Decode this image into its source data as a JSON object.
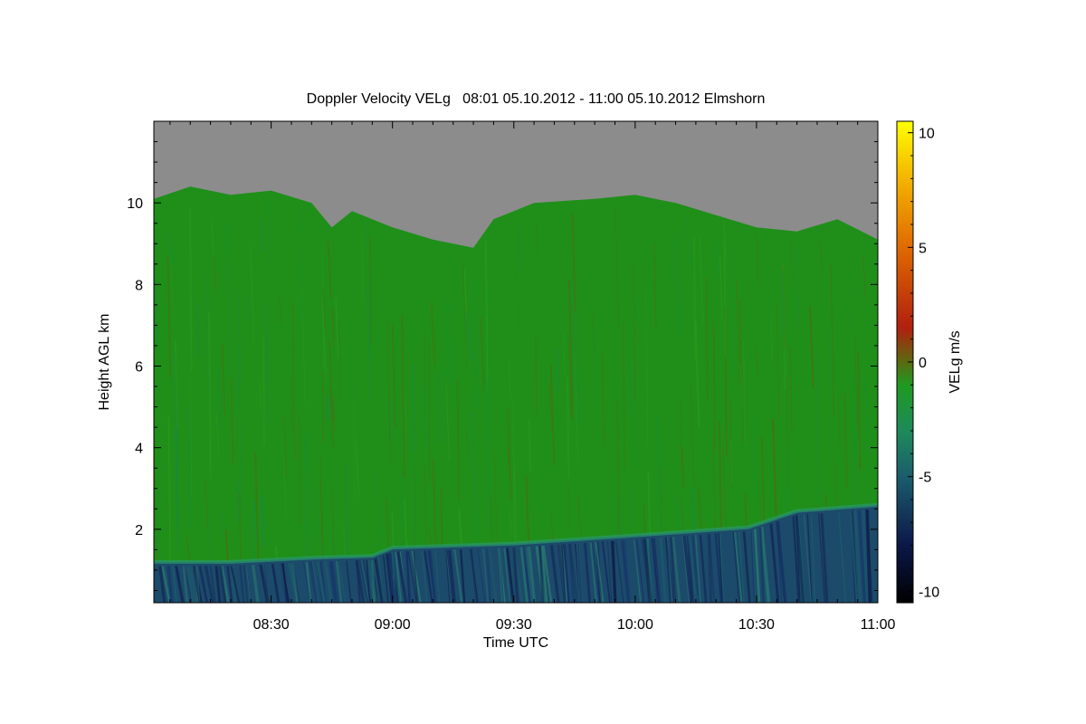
{
  "chart_data": {
    "type": "heatmap",
    "title": "Doppler Velocity VELg   08:01 05.10.2012 - 11:00 05.10.2012 Elmshorn",
    "xlabel": "Time UTC",
    "ylabel": "Height AGL km",
    "colorbar_label": "VELg m/s",
    "x_range_minutes_utc": [
      481,
      660
    ],
    "x_ticks": [
      {
        "minute": 510,
        "label": "08:30"
      },
      {
        "minute": 540,
        "label": "09:00"
      },
      {
        "minute": 570,
        "label": "09:30"
      },
      {
        "minute": 600,
        "label": "10:00"
      },
      {
        "minute": 630,
        "label": "10:30"
      },
      {
        "minute": 660,
        "label": "11:00"
      }
    ],
    "ylim": [
      0.2,
      12.0
    ],
    "y_ticks": [
      2,
      4,
      6,
      8,
      10
    ],
    "colorbar_range": [
      -10.5,
      10.5
    ],
    "colorbar_ticks": [
      10,
      5,
      0,
      -5,
      -10
    ],
    "colors": {
      "no_signal": "#8c8c8c",
      "cloud_green": "#1f8f1a",
      "rain_blue": "#1c4a6a",
      "rain_dark": "#0e1f4a"
    },
    "colormap": [
      {
        "v": -10.5,
        "c": "#000000"
      },
      {
        "v": -8.0,
        "c": "#0c1748"
      },
      {
        "v": -5.0,
        "c": "#1b5d6c"
      },
      {
        "v": -3.0,
        "c": "#1e8a5a"
      },
      {
        "v": -1.0,
        "c": "#1f9a22"
      },
      {
        "v": 0.0,
        "c": "#5a6a10"
      },
      {
        "v": 1.5,
        "c": "#b02010"
      },
      {
        "v": 5.0,
        "c": "#e06a00"
      },
      {
        "v": 8.0,
        "c": "#f4b400"
      },
      {
        "v": 10.5,
        "c": "#ffff00"
      }
    ],
    "echo_top_km": [
      {
        "minute": 481,
        "h": 10.1
      },
      {
        "minute": 490,
        "h": 10.4
      },
      {
        "minute": 500,
        "h": 10.2
      },
      {
        "minute": 510,
        "h": 10.3
      },
      {
        "minute": 520,
        "h": 10.0
      },
      {
        "minute": 525,
        "h": 9.4
      },
      {
        "minute": 530,
        "h": 9.8
      },
      {
        "minute": 540,
        "h": 9.4
      },
      {
        "minute": 550,
        "h": 9.1
      },
      {
        "minute": 560,
        "h": 8.9
      },
      {
        "minute": 565,
        "h": 9.6
      },
      {
        "minute": 575,
        "h": 10.0
      },
      {
        "minute": 590,
        "h": 10.1
      },
      {
        "minute": 600,
        "h": 10.2
      },
      {
        "minute": 610,
        "h": 10.0
      },
      {
        "minute": 620,
        "h": 9.7
      },
      {
        "minute": 630,
        "h": 9.4
      },
      {
        "minute": 640,
        "h": 9.3
      },
      {
        "minute": 650,
        "h": 9.6
      },
      {
        "minute": 660,
        "h": 9.1
      }
    ],
    "melting_layer_km": [
      {
        "minute": 481,
        "h": 1.2
      },
      {
        "minute": 500,
        "h": 1.2
      },
      {
        "minute": 520,
        "h": 1.3
      },
      {
        "minute": 535,
        "h": 1.35
      },
      {
        "minute": 540,
        "h": 1.55
      },
      {
        "minute": 570,
        "h": 1.65
      },
      {
        "minute": 600,
        "h": 1.85
      },
      {
        "minute": 628,
        "h": 2.05
      },
      {
        "minute": 640,
        "h": 2.45
      },
      {
        "minute": 660,
        "h": 2.6
      }
    ]
  }
}
